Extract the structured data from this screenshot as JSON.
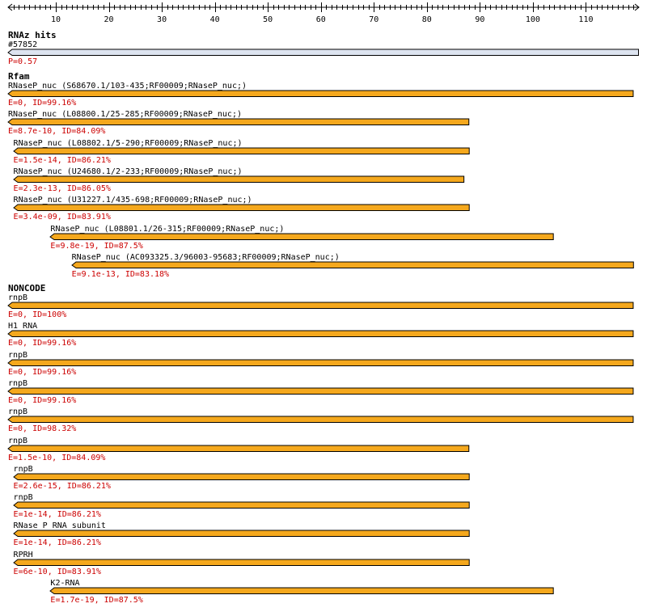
{
  "ruler": {
    "start": 1,
    "end": 120,
    "labels": [
      "10",
      "20",
      "30",
      "40",
      "50",
      "60",
      "70",
      "80",
      "90",
      "100",
      "110"
    ]
  },
  "colors": {
    "rnaz_fill": "#dde4f0",
    "hit_fill": "#f5a81d",
    "score_text": "#cc0000"
  },
  "sections": [
    {
      "title": "RNAz hits",
      "tracks": [
        {
          "label": "#57852",
          "score": "P=0.57",
          "start": 1,
          "end": 120,
          "style": "rnaz"
        }
      ]
    },
    {
      "title": "Rfam",
      "tracks": [
        {
          "label": "RNaseP_nuc (S68670.1/103-435;RF00009;RNaseP_nuc;)",
          "score": "E=0, ID=99.16%",
          "start": 1,
          "end": 119
        },
        {
          "label": "RNaseP_nuc (L08800.1/25-285;RF00009;RNaseP_nuc;)",
          "score": "E=8.7e-10, ID=84.09%",
          "start": 1,
          "end": 88
        },
        {
          "label": "RNaseP_nuc (L08802.1/5-290;RF00009;RNaseP_nuc;)",
          "score": "E=1.5e-14, ID=86.21%",
          "start": 2,
          "end": 88
        },
        {
          "label": "RNaseP_nuc (U24680.1/2-233;RF00009;RNaseP_nuc;)",
          "score": "E=2.3e-13, ID=86.05%",
          "start": 2,
          "end": 87
        },
        {
          "label": "RNaseP_nuc (U31227.1/435-698;RF00009;RNaseP_nuc;)",
          "score": "E=3.4e-09, ID=83.91%",
          "start": 2,
          "end": 88
        },
        {
          "label": "RNaseP_nuc (L08801.1/26-315;RF00009;RNaseP_nuc;)",
          "score": "E=9.8e-19, ID=87.5%",
          "start": 9,
          "end": 104
        },
        {
          "label": "RNaseP_nuc (AC093325.3/96003-95683;RF00009;RNaseP_nuc;)",
          "score": "E=9.1e-13, ID=83.18%",
          "start": 13,
          "end": 119
        }
      ]
    },
    {
      "title": "NONCODE",
      "tracks": [
        {
          "label": "rnpB",
          "score": "E=0, ID=100%",
          "start": 1,
          "end": 119
        },
        {
          "label": "H1 RNA",
          "score": "E=0, ID=99.16%",
          "start": 1,
          "end": 119
        },
        {
          "label": "rnpB",
          "score": "E=0, ID=99.16%",
          "start": 1,
          "end": 119
        },
        {
          "label": "rnpB",
          "score": "E=0, ID=99.16%",
          "start": 1,
          "end": 119
        },
        {
          "label": "rnpB",
          "score": "E=0, ID=98.32%",
          "start": 1,
          "end": 119
        },
        {
          "label": "rnpB",
          "score": "E=1.5e-10, ID=84.09%",
          "start": 1,
          "end": 88
        },
        {
          "label": "rnpB",
          "score": "E=2.6e-15, ID=86.21%",
          "start": 2,
          "end": 88
        },
        {
          "label": "rnpB",
          "score": "E=1e-14, ID=86.21%",
          "start": 2,
          "end": 88
        },
        {
          "label": "RNase P RNA subunit",
          "score": "E=1e-14, ID=86.21%",
          "start": 2,
          "end": 88
        },
        {
          "label": "RPRH",
          "score": "E=6e-10, ID=83.91%",
          "start": 2,
          "end": 88
        },
        {
          "label": "K2-RNA",
          "score": "E=1.7e-19, ID=87.5%",
          "start": 9,
          "end": 104
        }
      ]
    }
  ]
}
